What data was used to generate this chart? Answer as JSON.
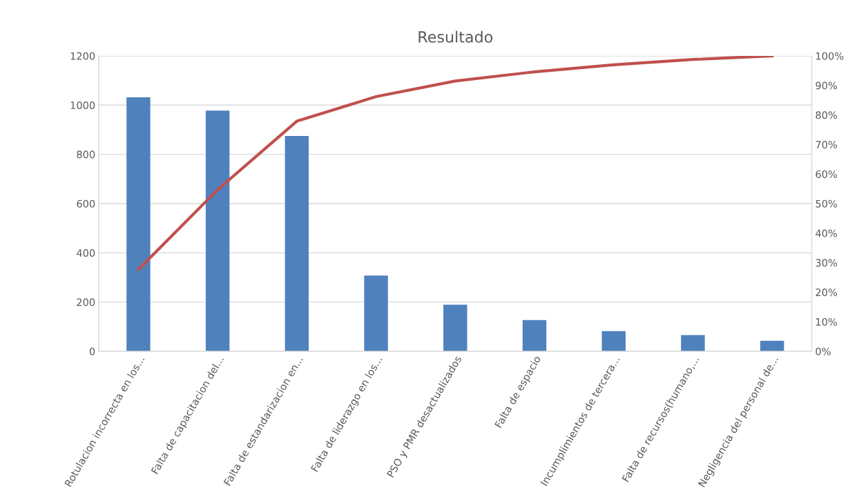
{
  "chart_data": {
    "type": "bar",
    "title": "Resultado",
    "categories": [
      "Rotulacion incorrecta en los...",
      "Falta de capacitacion del...",
      "Falta de estandarizacion en...",
      "Falta de liderazgo en los...",
      "PSO y PMR desactualizados",
      "Falta de espacio",
      "Incumplimientos de tercera...",
      "Falta de recursos(humano,...",
      "Negligencia del personal de..."
    ],
    "series": [
      {
        "color": "#4f81bd",
        "values": [
          1032,
          978,
          875,
          308,
          189,
          127,
          82,
          66,
          43
        ]
      },
      {
        "type": "line",
        "axis": "y2",
        "color": "#c0504d",
        "values": [
          27.7,
          54.7,
          77.9,
          86.2,
          91.5,
          94.6,
          97.0,
          98.8,
          100
        ]
      }
    ],
    "ylim": [
      0,
      1200
    ],
    "yticks": [
      0,
      200,
      400,
      600,
      800,
      1000,
      1200
    ],
    "y2lim": [
      0,
      100
    ],
    "y2ticks": [
      {
        "value": 0,
        "label": "0%"
      },
      {
        "value": 10,
        "label": "10%"
      },
      {
        "value": 20,
        "label": "20%"
      },
      {
        "value": 30,
        "label": "30%"
      },
      {
        "value": 40,
        "label": "40%"
      },
      {
        "value": 50,
        "label": "50%"
      },
      {
        "value": 60,
        "label": "60%"
      },
      {
        "value": 70,
        "label": "70%"
      },
      {
        "value": 80,
        "label": "80%"
      },
      {
        "value": 90,
        "label": "90%"
      },
      {
        "value": 100,
        "label": "100%"
      }
    ],
    "grid": "y",
    "legend": false,
    "marker": "none",
    "line_style": "solid"
  }
}
